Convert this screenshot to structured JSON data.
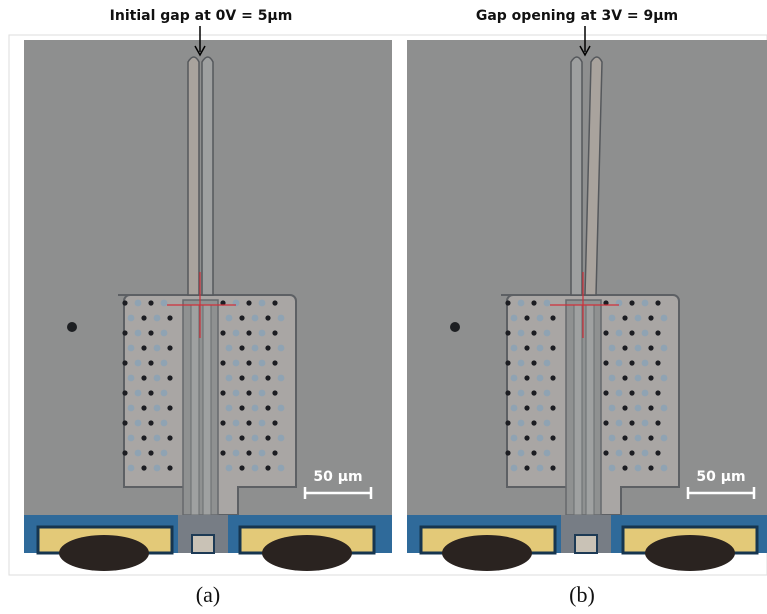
{
  "panels": [
    {
      "title": "Initial gap at 0V = 5μm",
      "scale_bar": "50 μm",
      "caption": "(a)"
    },
    {
      "title": "Gap opening at 3V = 9μm",
      "scale_bar": "50 μm",
      "caption": "(b)"
    }
  ]
}
